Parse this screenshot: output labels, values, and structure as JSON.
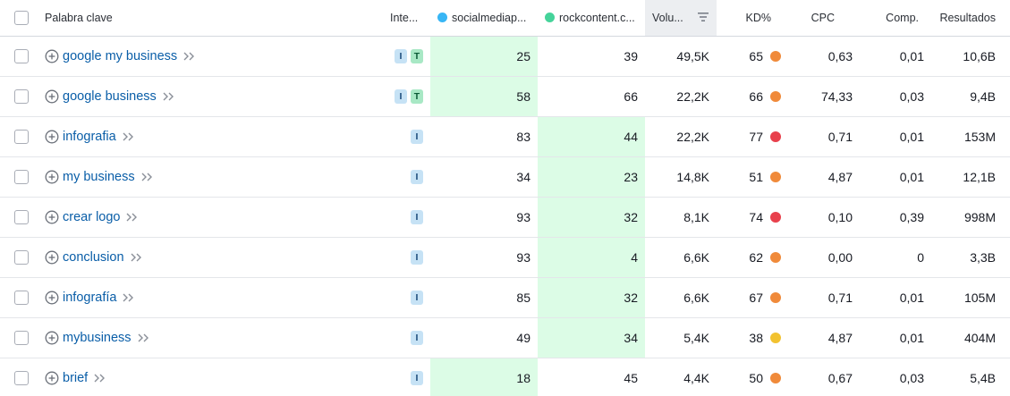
{
  "header": {
    "keyword": "Palabra clave",
    "intent": "Inte...",
    "site1": "socialmediap...",
    "site2": "rockcontent.c...",
    "volume": "Volu...",
    "kd": "KD%",
    "cpc": "CPC",
    "comp": "Comp.",
    "results": "Resultados"
  },
  "colors": {
    "site1_dot": "#38b6f5",
    "site2_dot": "#45d39a",
    "highlight": "#dcfce6",
    "kd_orange": "#f08a3a",
    "kd_red": "#e8404c",
    "kd_yellow": "#f2c230",
    "link": "#0a5ea8"
  },
  "rows": [
    {
      "keyword": "google my business",
      "intents": [
        "I",
        "T"
      ],
      "site1": "25",
      "site2": "39",
      "volume": "49,5K",
      "kd": "65",
      "kd_color": "#f08a3a",
      "cpc": "0,63",
      "comp": "0,01",
      "results": "10,6B",
      "best": "site1"
    },
    {
      "keyword": "google business",
      "intents": [
        "I",
        "T"
      ],
      "site1": "58",
      "site2": "66",
      "volume": "22,2K",
      "kd": "66",
      "kd_color": "#f08a3a",
      "cpc": "74,33",
      "comp": "0,03",
      "results": "9,4B",
      "best": "site1"
    },
    {
      "keyword": "infografia",
      "intents": [
        "I"
      ],
      "site1": "83",
      "site2": "44",
      "volume": "22,2K",
      "kd": "77",
      "kd_color": "#e8404c",
      "cpc": "0,71",
      "comp": "0,01",
      "results": "153M",
      "best": "site2"
    },
    {
      "keyword": "my business",
      "intents": [
        "I"
      ],
      "site1": "34",
      "site2": "23",
      "volume": "14,8K",
      "kd": "51",
      "kd_color": "#f08a3a",
      "cpc": "4,87",
      "comp": "0,01",
      "results": "12,1B",
      "best": "site2"
    },
    {
      "keyword": "crear logo",
      "intents": [
        "I"
      ],
      "site1": "93",
      "site2": "32",
      "volume": "8,1K",
      "kd": "74",
      "kd_color": "#e8404c",
      "cpc": "0,10",
      "comp": "0,39",
      "results": "998M",
      "best": "site2"
    },
    {
      "keyword": "conclusion",
      "intents": [
        "I"
      ],
      "site1": "93",
      "site2": "4",
      "volume": "6,6K",
      "kd": "62",
      "kd_color": "#f08a3a",
      "cpc": "0,00",
      "comp": "0",
      "results": "3,3B",
      "best": "site2"
    },
    {
      "keyword": "infografía",
      "intents": [
        "I"
      ],
      "site1": "85",
      "site2": "32",
      "volume": "6,6K",
      "kd": "67",
      "kd_color": "#f08a3a",
      "cpc": "0,71",
      "comp": "0,01",
      "results": "105M",
      "best": "site2"
    },
    {
      "keyword": "mybusiness",
      "intents": [
        "I"
      ],
      "site1": "49",
      "site2": "34",
      "volume": "5,4K",
      "kd": "38",
      "kd_color": "#f2c230",
      "cpc": "4,87",
      "comp": "0,01",
      "results": "404M",
      "best": "site2"
    },
    {
      "keyword": "brief",
      "intents": [
        "I"
      ],
      "site1": "18",
      "site2": "45",
      "volume": "4,4K",
      "kd": "50",
      "kd_color": "#f08a3a",
      "cpc": "0,67",
      "comp": "0,03",
      "results": "5,4B",
      "best": "site1"
    }
  ]
}
